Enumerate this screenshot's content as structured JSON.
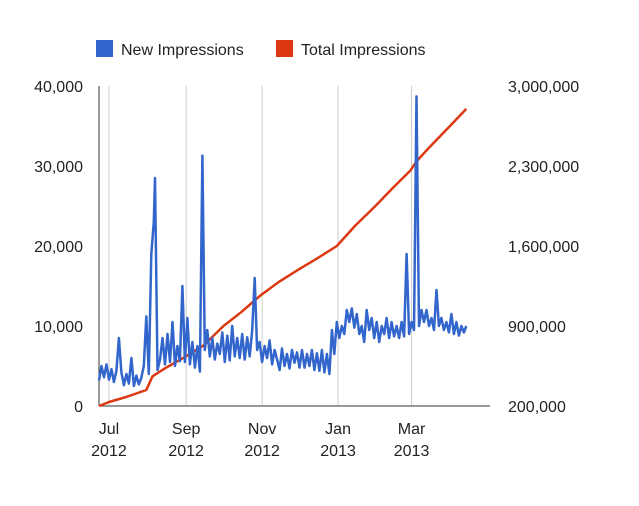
{
  "chart_data": {
    "type": "line",
    "legend_position": "top-left",
    "grid": "vertical",
    "x_range": [
      "2012-06-23",
      "2013-05-03"
    ],
    "x_ticks": [
      {
        "date": "2012-07-01",
        "month": "Jul",
        "year": "2012"
      },
      {
        "date": "2012-09-01",
        "month": "Sep",
        "year": "2012"
      },
      {
        "date": "2012-11-01",
        "month": "Nov",
        "year": "2012"
      },
      {
        "date": "2013-01-01",
        "month": "Jan",
        "year": "2013"
      },
      {
        "date": "2013-03-01",
        "month": "Mar",
        "year": "2013"
      }
    ],
    "y_left": {
      "range": [
        0,
        40000
      ],
      "ticks": [
        "0",
        "10,000",
        "20,000",
        "30,000",
        "40,000"
      ]
    },
    "y_right": {
      "range": [
        200000,
        3000000
      ],
      "ticks": [
        "200,000",
        "900,000",
        "1,600,000",
        "2,300,000",
        "3,000,000"
      ]
    },
    "series": [
      {
        "name": "New Impressions",
        "color": "#3366cc",
        "axis": "left",
        "points": [
          [
            "2012-06-23",
            3200
          ],
          [
            "2012-06-25",
            5000
          ],
          [
            "2012-06-27",
            3600
          ],
          [
            "2012-06-29",
            5200
          ],
          [
            "2012-07-01",
            3300
          ],
          [
            "2012-07-03",
            4600
          ],
          [
            "2012-07-05",
            3000
          ],
          [
            "2012-07-07",
            4400
          ],
          [
            "2012-07-09",
            8500
          ],
          [
            "2012-07-11",
            4200
          ],
          [
            "2012-07-13",
            2600
          ],
          [
            "2012-07-15",
            4000
          ],
          [
            "2012-07-17",
            2800
          ],
          [
            "2012-07-19",
            6000
          ],
          [
            "2012-07-21",
            2500
          ],
          [
            "2012-07-23",
            3800
          ],
          [
            "2012-07-25",
            2700
          ],
          [
            "2012-07-27",
            3500
          ],
          [
            "2012-07-29",
            5000
          ],
          [
            "2012-07-31",
            11200
          ],
          [
            "2012-08-02",
            4000
          ],
          [
            "2012-08-04",
            19000
          ],
          [
            "2012-08-06",
            23000
          ],
          [
            "2012-08-07",
            28500
          ],
          [
            "2012-08-09",
            4500
          ],
          [
            "2012-08-11",
            5800
          ],
          [
            "2012-08-13",
            8500
          ],
          [
            "2012-08-15",
            5200
          ],
          [
            "2012-08-17",
            9000
          ],
          [
            "2012-08-19",
            5500
          ],
          [
            "2012-08-21",
            10500
          ],
          [
            "2012-08-23",
            5000
          ],
          [
            "2012-08-25",
            7500
          ],
          [
            "2012-08-27",
            5600
          ],
          [
            "2012-08-29",
            15000
          ],
          [
            "2012-08-31",
            5500
          ],
          [
            "2012-09-02",
            11000
          ],
          [
            "2012-09-04",
            5200
          ],
          [
            "2012-09-06",
            8000
          ],
          [
            "2012-09-08",
            4800
          ],
          [
            "2012-09-10",
            7500
          ],
          [
            "2012-09-12",
            4300
          ],
          [
            "2012-09-14",
            31300
          ],
          [
            "2012-09-16",
            7000
          ],
          [
            "2012-09-18",
            9500
          ],
          [
            "2012-09-20",
            6200
          ],
          [
            "2012-09-22",
            8500
          ],
          [
            "2012-09-24",
            5800
          ],
          [
            "2012-09-26",
            7800
          ],
          [
            "2012-09-28",
            6500
          ],
          [
            "2012-09-30",
            9200
          ],
          [
            "2012-10-02",
            5500
          ],
          [
            "2012-10-04",
            8800
          ],
          [
            "2012-10-06",
            5700
          ],
          [
            "2012-10-08",
            10000
          ],
          [
            "2012-10-10",
            6200
          ],
          [
            "2012-10-12",
            8500
          ],
          [
            "2012-10-14",
            6000
          ],
          [
            "2012-10-16",
            9000
          ],
          [
            "2012-10-18",
            5800
          ],
          [
            "2012-10-20",
            8600
          ],
          [
            "2012-10-22",
            6200
          ],
          [
            "2012-10-24",
            9500
          ],
          [
            "2012-10-26",
            16000
          ],
          [
            "2012-10-28",
            7000
          ],
          [
            "2012-10-30",
            8000
          ],
          [
            "2012-11-01",
            5500
          ],
          [
            "2012-11-03",
            7500
          ],
          [
            "2012-11-05",
            6000
          ],
          [
            "2012-11-07",
            8200
          ],
          [
            "2012-11-09",
            5200
          ],
          [
            "2012-11-11",
            7000
          ],
          [
            "2012-11-13",
            5800
          ],
          [
            "2012-11-15",
            4500
          ],
          [
            "2012-11-17",
            7200
          ],
          [
            "2012-11-19",
            5000
          ],
          [
            "2012-11-21",
            6500
          ],
          [
            "2012-11-23",
            4700
          ],
          [
            "2012-11-25",
            7000
          ],
          [
            "2012-11-27",
            5400
          ],
          [
            "2012-11-29",
            6700
          ],
          [
            "2012-12-01",
            4800
          ],
          [
            "2012-12-03",
            7000
          ],
          [
            "2012-12-05",
            4800
          ],
          [
            "2012-12-07",
            6500
          ],
          [
            "2012-12-09",
            5000
          ],
          [
            "2012-12-11",
            7000
          ],
          [
            "2012-12-13",
            4500
          ],
          [
            "2012-12-15",
            6600
          ],
          [
            "2012-12-17",
            4400
          ],
          [
            "2012-12-19",
            7000
          ],
          [
            "2012-12-21",
            4200
          ],
          [
            "2012-12-23",
            6500
          ],
          [
            "2012-12-25",
            4000
          ],
          [
            "2012-12-27",
            9500
          ],
          [
            "2012-12-29",
            6500
          ],
          [
            "2012-12-31",
            10500
          ],
          [
            "2013-01-02",
            8500
          ],
          [
            "2013-01-04",
            10000
          ],
          [
            "2013-01-06",
            9000
          ],
          [
            "2013-01-08",
            12000
          ],
          [
            "2013-01-10",
            10500
          ],
          [
            "2013-01-12",
            12200
          ],
          [
            "2013-01-14",
            9800
          ],
          [
            "2013-01-16",
            11500
          ],
          [
            "2013-01-18",
            9000
          ],
          [
            "2013-01-20",
            10000
          ],
          [
            "2013-01-22",
            8000
          ],
          [
            "2013-01-24",
            12000
          ],
          [
            "2013-01-26",
            9500
          ],
          [
            "2013-01-28",
            11000
          ],
          [
            "2013-01-30",
            8500
          ],
          [
            "2013-02-01",
            10500
          ],
          [
            "2013-02-03",
            8000
          ],
          [
            "2013-02-05",
            10000
          ],
          [
            "2013-02-07",
            9000
          ],
          [
            "2013-02-09",
            11000
          ],
          [
            "2013-02-11",
            8500
          ],
          [
            "2013-02-13",
            10500
          ],
          [
            "2013-02-15",
            8700
          ],
          [
            "2013-02-17",
            10000
          ],
          [
            "2013-02-19",
            8500
          ],
          [
            "2013-02-21",
            10500
          ],
          [
            "2013-02-23",
            8700
          ],
          [
            "2013-02-25",
            19000
          ],
          [
            "2013-02-27",
            9000
          ],
          [
            "2013-03-01",
            10500
          ],
          [
            "2013-03-03",
            9500
          ],
          [
            "2013-03-05",
            38700
          ],
          [
            "2013-03-07",
            10000
          ],
          [
            "2013-03-09",
            12000
          ],
          [
            "2013-03-11",
            10500
          ],
          [
            "2013-03-13",
            12000
          ],
          [
            "2013-03-15",
            10000
          ],
          [
            "2013-03-17",
            11000
          ],
          [
            "2013-03-19",
            9500
          ],
          [
            "2013-03-21",
            14500
          ],
          [
            "2013-03-23",
            10000
          ],
          [
            "2013-03-25",
            11000
          ],
          [
            "2013-03-27",
            9500
          ],
          [
            "2013-03-29",
            10500
          ],
          [
            "2013-03-31",
            9200
          ],
          [
            "2013-04-02",
            11500
          ],
          [
            "2013-04-04",
            9000
          ],
          [
            "2013-04-06",
            10500
          ],
          [
            "2013-04-08",
            8800
          ],
          [
            "2013-04-10",
            10000
          ],
          [
            "2013-04-12",
            9200
          ],
          [
            "2013-04-14",
            10000
          ]
        ]
      },
      {
        "name": "Total Impressions",
        "color": "#dc3912",
        "axis": "right",
        "points": [
          [
            "2012-06-23",
            200000
          ],
          [
            "2012-07-01",
            235000
          ],
          [
            "2012-07-15",
            280000
          ],
          [
            "2012-07-31",
            340000
          ],
          [
            "2012-08-05",
            460000
          ],
          [
            "2012-08-15",
            530000
          ],
          [
            "2012-08-31",
            630000
          ],
          [
            "2012-09-15",
            730000
          ],
          [
            "2012-10-01",
            900000
          ],
          [
            "2012-10-15",
            1020000
          ],
          [
            "2012-10-31",
            1170000
          ],
          [
            "2012-11-15",
            1290000
          ],
          [
            "2012-12-01",
            1400000
          ],
          [
            "2012-12-15",
            1490000
          ],
          [
            "2012-12-31",
            1600000
          ],
          [
            "2013-01-15",
            1780000
          ],
          [
            "2013-01-31",
            1950000
          ],
          [
            "2013-02-15",
            2120000
          ],
          [
            "2013-02-28",
            2260000
          ],
          [
            "2013-03-05",
            2340000
          ],
          [
            "2013-03-15",
            2460000
          ],
          [
            "2013-03-31",
            2640000
          ],
          [
            "2013-04-14",
            2800000
          ]
        ]
      }
    ]
  }
}
